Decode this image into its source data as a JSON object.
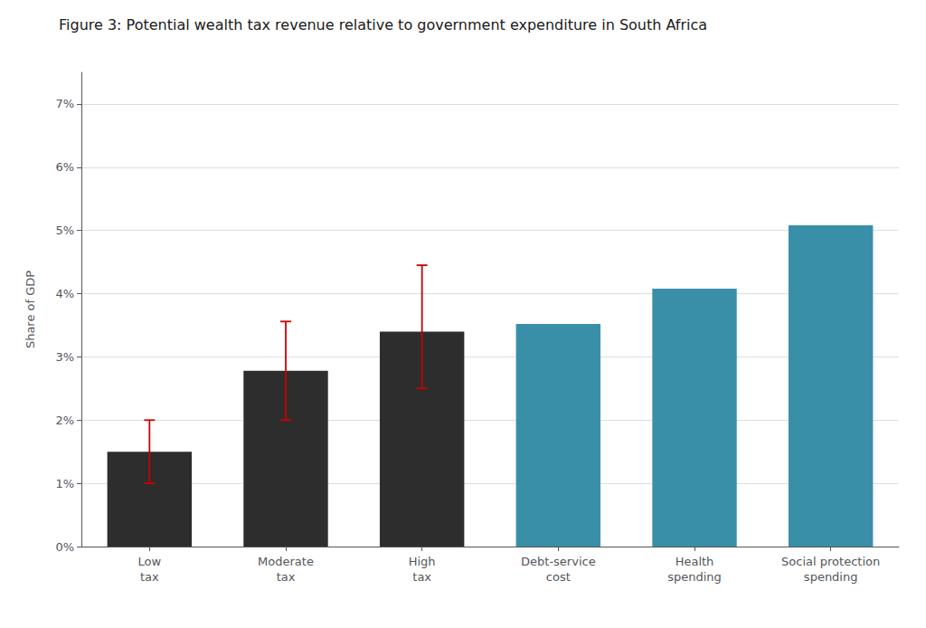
{
  "chart_data": {
    "type": "bar",
    "title": "Figure 3: Potential wealth tax revenue relative to government expenditure in South Africa",
    "ylabel": "Share of GDP",
    "categories": [
      "Low\ntax",
      "Moderate\ntax",
      "High\ntax",
      "Debt-service\ncost",
      "Health\nspending",
      "Social protection\nspending"
    ],
    "values": [
      1.5,
      2.78,
      3.4,
      3.52,
      4.08,
      5.08
    ],
    "colors": [
      "#2d2d2d",
      "#2d2d2d",
      "#2d2d2d",
      "#3a8fa8",
      "#3a8fa8",
      "#3a8fa8"
    ],
    "error_bars": [
      {
        "category": "Low\ntax",
        "lower": 0.5,
        "upper": 0.5,
        "color": "#cc0000"
      },
      {
        "category": "Moderate\ntax",
        "lower": 0.78,
        "upper": 0.78,
        "color": "#cc0000"
      },
      {
        "category": "High\ntax",
        "lower": 0.9,
        "upper": 1.05,
        "color": "#cc0000"
      }
    ],
    "ylim": [
      0,
      7.5
    ],
    "yticks": [
      {
        "value": 0,
        "label": "0%"
      },
      {
        "value": 1,
        "label": "1%"
      },
      {
        "value": 2,
        "label": "2%"
      },
      {
        "value": 3,
        "label": "3%"
      },
      {
        "value": 4,
        "label": "4%"
      },
      {
        "value": 5,
        "label": "5%"
      },
      {
        "value": 6,
        "label": "6%"
      },
      {
        "value": 7,
        "label": "7%"
      }
    ],
    "grid": true
  }
}
